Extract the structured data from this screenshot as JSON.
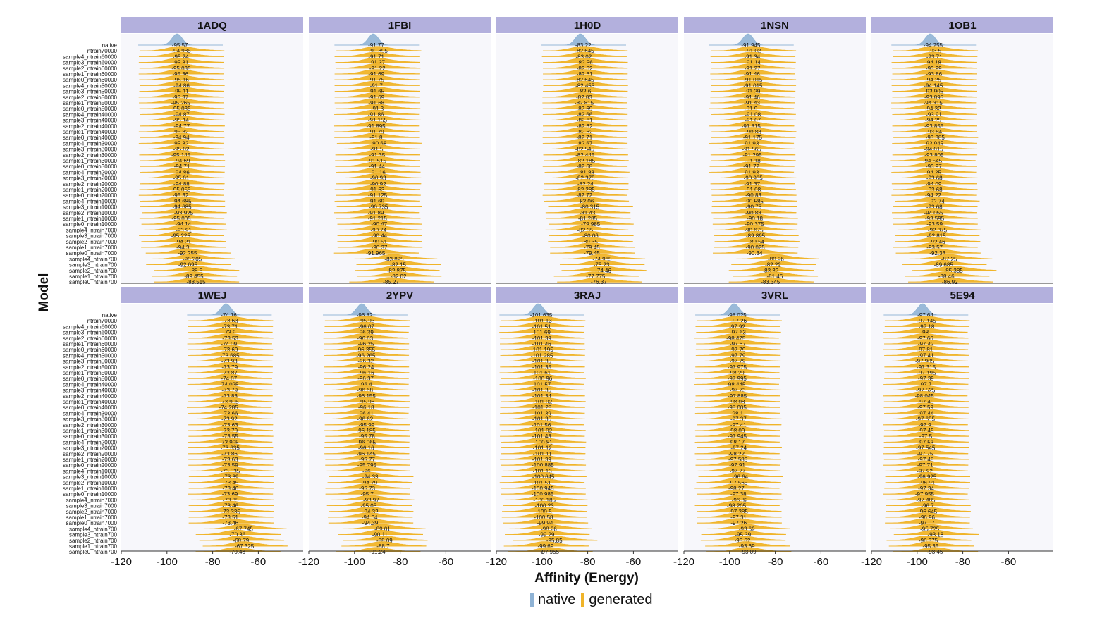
{
  "chart_data": {
    "type": "ridgeline",
    "xlabel": "Affinity (Energy)",
    "ylabel": "Model",
    "xlim": [
      -120,
      -40
    ],
    "xticks": [
      -120,
      -100,
      -80,
      -60
    ],
    "legend": {
      "position": "bottom",
      "items": [
        {
          "name": "native",
          "color": "#8fb3d5"
        },
        {
          "name": "generated",
          "color": "#f0b429"
        }
      ]
    },
    "colors": {
      "native": "#8fb3d5",
      "generated": "#f0b429",
      "strip": "#b3b0dd",
      "panel": "#f7f7fb"
    },
    "models": [
      "native",
      "ntrain70000",
      "sample4_ntrain60000",
      "sample3_ntrain60000",
      "sample2_ntrain60000",
      "sample1_ntrain60000",
      "sample0_ntrain60000",
      "sample4_ntrain50000",
      "sample3_ntrain50000",
      "sample2_ntrain50000",
      "sample1_ntrain50000",
      "sample0_ntrain50000",
      "sample4_ntrain40000",
      "sample3_ntrain40000",
      "sample2_ntrain40000",
      "sample1_ntrain40000",
      "sample0_ntrain40000",
      "sample4_ntrain30000",
      "sample3_ntrain30000",
      "sample2_ntrain30000",
      "sample1_ntrain30000",
      "sample0_ntrain30000",
      "sample4_ntrain20000",
      "sample3_ntrain20000",
      "sample2_ntrain20000",
      "sample1_ntrain20000",
      "sample0_ntrain20000",
      "sample4_ntrain10000",
      "sample3_ntrain10000",
      "sample2_ntrain10000",
      "sample1_ntrain10000",
      "sample0_ntrain10000",
      "sample4_ntrain7000",
      "sample3_ntrain7000",
      "sample2_ntrain7000",
      "sample1_ntrain7000",
      "sample0_ntrain7000",
      "sample4_ntrain700",
      "sample3_ntrain700",
      "sample2_ntrain700",
      "sample1_ntrain700",
      "sample0_ntrain700"
    ],
    "panels": [
      {
        "title": "1ADQ",
        "values": [
          -95.57,
          -94.985,
          -95.24,
          -95.31,
          -95.035,
          -95.36,
          -95.16,
          -94.86,
          -95.11,
          -95.37,
          -95.265,
          -95.035,
          -94.87,
          -95.14,
          -94.77,
          -95.32,
          -94.94,
          -95.32,
          -95.02,
          -95.145,
          -94.69,
          -94.71,
          -94.86,
          -95.01,
          -94.88,
          -95.055,
          -95.32,
          -94.685,
          -94.685,
          -93.925,
          -95.005,
          -94.14,
          -93.91,
          -95.225,
          -94.21,
          -94.3,
          -92.255,
          -90.205,
          -92.095,
          -88.5,
          -89.455,
          -88.515
        ]
      },
      {
        "title": "1FBI",
        "values": [
          -91.77,
          -90.895,
          -91.71,
          -91.37,
          -91.22,
          -91.69,
          -91.75,
          -91.7,
          -91.65,
          -91.69,
          -91.68,
          -91.3,
          -91.86,
          -91.155,
          -91.895,
          -91.79,
          -91.8,
          -90.68,
          -91.5,
          -91.35,
          -91.515,
          -91.44,
          -91.16,
          -90.93,
          -90.92,
          -91.63,
          -91.125,
          -91.69,
          -90.735,
          -91.89,
          -91.215,
          -90.47,
          -90.74,
          -90.44,
          -90.51,
          -90.37,
          -91.965,
          -83.895,
          -82.15,
          -82.875,
          -82.02,
          -85.27
        ]
      },
      {
        "title": "1H0D",
        "values": [
          -83.22,
          -82.645,
          -83.02,
          -82.56,
          -82.62,
          -82.61,
          -82.645,
          -82.455,
          -82.6,
          -82.83,
          -82.815,
          -82.69,
          -82.66,
          -82.61,
          -82.62,
          -82.62,
          -82.71,
          -82.67,
          -82.545,
          -82.445,
          -82.185,
          -82.68,
          -81.83,
          -82.375,
          -82.24,
          -82.285,
          -82.72,
          -82.06,
          -80.315,
          -81.43,
          -81.285,
          -79.985,
          -82.35,
          -80.06,
          -80.35,
          -79.45,
          -79.45,
          -74.965,
          -75.23,
          -74.46,
          -77.775,
          -76.37
        ]
      },
      {
        "title": "1NSN",
        "values": [
          -91.945,
          -91.02,
          -91.34,
          -91.14,
          -91.27,
          -91.46,
          -91.015,
          -91.015,
          -91.29,
          -91.46,
          -91.43,
          -91.9,
          -91.08,
          -91.07,
          -91.815,
          -90.88,
          -91.175,
          -91.93,
          -91.565,
          -91.295,
          -91.18,
          -91.72,
          -91.93,
          -90.935,
          -91.37,
          -91.08,
          -90.83,
          -90.585,
          -90.75,
          -90.88,
          -90.18,
          -90.375,
          -90.675,
          -89.895,
          -89.54,
          -90.025,
          -90.34,
          -80.96,
          -82.22,
          -83.32,
          -81.46,
          -83.345
        ]
      },
      {
        "title": "1OB1",
        "values": [
          -94.255,
          -93.5,
          -93.71,
          -94.18,
          -93.99,
          -93.86,
          -94.25,
          -94.145,
          -93.905,
          -93.895,
          -94.315,
          -94.32,
          -93.91,
          -94.25,
          -93.855,
          -93.84,
          -93.385,
          -93.945,
          -94.015,
          -93.805,
          -94.545,
          -93.97,
          -94.25,
          -93.68,
          -94.09,
          -93.68,
          -94.22,
          -92.74,
          -93.68,
          -94.055,
          -93.595,
          -93.59,
          -92.375,
          -92.815,
          -92.46,
          -93.57,
          -92.33,
          -87.25,
          -89.685,
          -85.385,
          -88.46,
          -86.92
        ]
      },
      {
        "title": "1WEJ",
        "values": [
          -74.16,
          -73.63,
          -73.71,
          -73.9,
          -73.53,
          -74.09,
          -73.69,
          -73.685,
          -73.93,
          -73.79,
          -73.87,
          -74.07,
          -74.025,
          -73.79,
          -73.83,
          -73.995,
          -74.285,
          -73.66,
          -73.92,
          -73.63,
          -73.79,
          -73.55,
          -73.995,
          -73.635,
          -73.86,
          -73.63,
          -73.59,
          -73.535,
          -73.39,
          -73.45,
          -73.46,
          -73.69,
          -73.35,
          -73.46,
          -73.335,
          -73.51,
          -73.46,
          -67.745,
          -70.36,
          -68.79,
          -67.325,
          -70.43
        ]
      },
      {
        "title": "2YPV",
        "values": [
          -96.82,
          -95.93,
          -96.07,
          -96.39,
          -96.63,
          -96.25,
          -96.355,
          -96.265,
          -96.32,
          -96.24,
          -96.16,
          -96.37,
          -96.4,
          -96.68,
          -96.155,
          -95.98,
          -96.18,
          -96.41,
          -96.62,
          -95.99,
          -96.185,
          -95.78,
          -96.065,
          -96.16,
          -96.145,
          -95.77,
          -95.795,
          -96,
          -94.33,
          -94.79,
          -95.73,
          -95.7,
          -93.97,
          -95.05,
          -94.32,
          -94.64,
          -94.39,
          -89.01,
          -90.11,
          -88.09,
          -88.7,
          -91.24
        ]
      },
      {
        "title": "3RAJ",
        "values": [
          -101.635,
          -101.13,
          -101.51,
          -101.69,
          -101.39,
          -101.46,
          -101.195,
          -101.285,
          -101.35,
          -101.35,
          -101.61,
          -100.96,
          -101.57,
          -101.35,
          -101.34,
          -101.02,
          -101.28,
          -101.39,
          -101.35,
          -101.56,
          -101.02,
          -101.43,
          -100.81,
          -101.12,
          -101.11,
          -101.39,
          -100.885,
          -101.13,
          -100.645,
          -101.51,
          -100.945,
          -100.985,
          -100.185,
          -100.23,
          -100.5,
          -100.58,
          -99.94,
          -98.26,
          -99.29,
          -95.85,
          -99.69,
          -97.955
        ]
      },
      {
        "title": "3VRL",
        "values": [
          -98.025,
          -97.26,
          -97.92,
          -97.63,
          -98.475,
          -97.67,
          -97.79,
          -97.79,
          -97.79,
          -97.975,
          -98.29,
          -97.995,
          -98.445,
          -97.73,
          -97.885,
          -98.08,
          -98.005,
          -98.1,
          -97.37,
          -97.41,
          -98.09,
          -97.945,
          -98.17,
          -97.24,
          -98.22,
          -97.585,
          -97.91,
          -97.77,
          -96.64,
          -97.565,
          -98.27,
          -97.38,
          -96.82,
          -98.205,
          -97.385,
          -97.31,
          -97.26,
          -93.69,
          -95.39,
          -95.62,
          -93.69,
          -93.09
        ]
      },
      {
        "title": "5E94",
        "values": [
          -97.64,
          -97.145,
          -97.18,
          -98,
          -97.66,
          -97.42,
          -97.81,
          -97.41,
          -97.905,
          -97.315,
          -97.195,
          -97.39,
          -97.7,
          -97.525,
          -98.045,
          -97.49,
          -97.59,
          -97.44,
          -97.655,
          -97.9,
          -97.45,
          -97.5,
          -97.53,
          -97.545,
          -97.75,
          -97.48,
          -97.71,
          -97.92,
          -96.925,
          -96.91,
          -97.34,
          -97.955,
          -97.485,
          -96.7,
          -96.645,
          -96.96,
          -97.07,
          -95.725,
          -93.18,
          -96.375,
          -95.35,
          -93.45
        ]
      }
    ]
  }
}
